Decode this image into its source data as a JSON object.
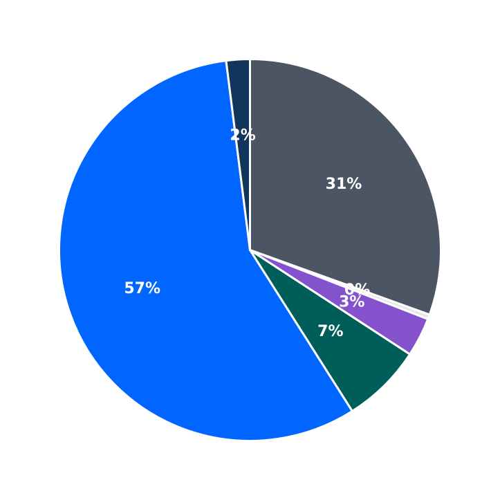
{
  "chart_data": {
    "type": "pie",
    "start_angle_deg": 90,
    "direction": "clockwise",
    "slices": [
      {
        "value": 30.5,
        "label": "31%",
        "color": "#4b5563"
      },
      {
        "value": 0.4,
        "label": "0%",
        "color": "#e5e7eb"
      },
      {
        "value": 3.3,
        "label": "3%",
        "color": "#8352cc"
      },
      {
        "value": 6.8,
        "label": "7%",
        "color": "#005e5a"
      },
      {
        "value": 57.0,
        "label": "57%",
        "color": "#0066ff"
      },
      {
        "value": 2.0,
        "label": "2%",
        "color": "#12355b"
      }
    ]
  }
}
